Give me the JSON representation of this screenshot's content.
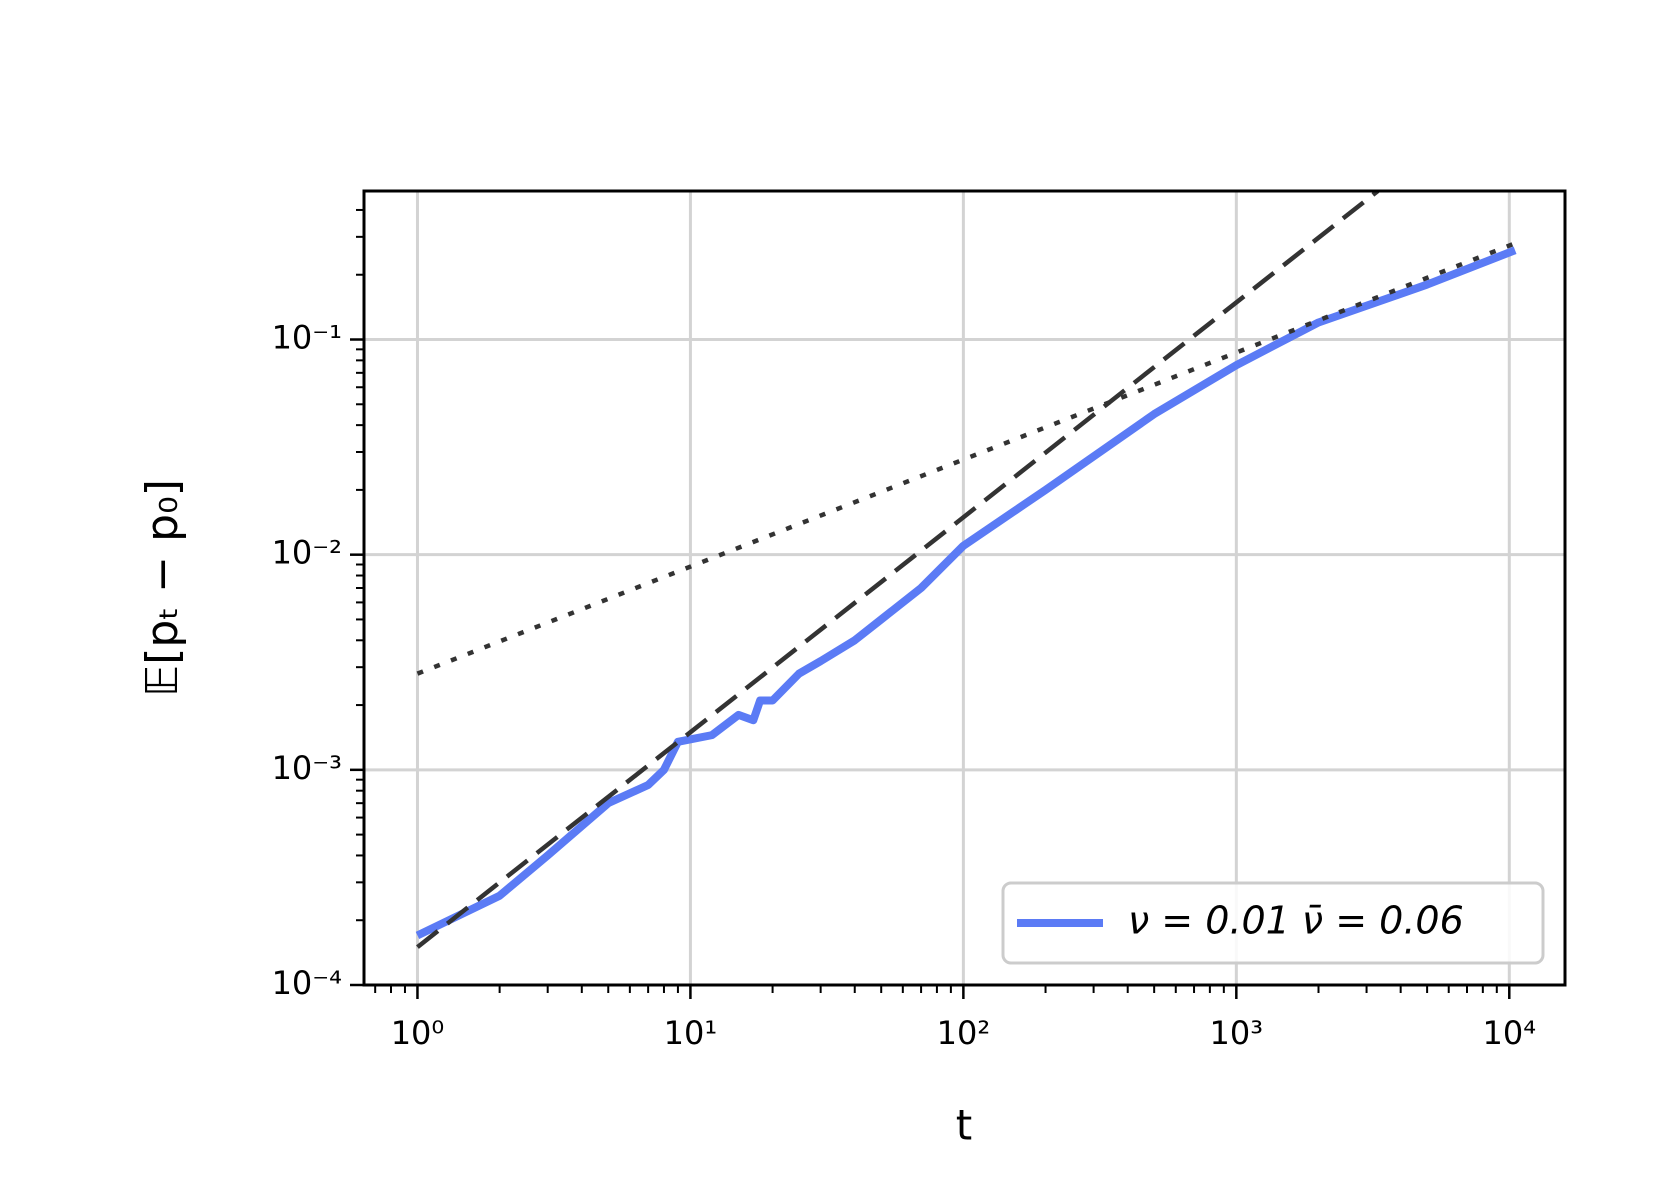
{
  "chart_data": {
    "type": "line",
    "xlabel": "t",
    "ylabel": "𝔼[pₜ − p₀]",
    "log_x": true,
    "log_y": true,
    "grid": true,
    "legend": "lower right",
    "xlim": [
      0.637,
      16000
    ],
    "ylim": [
      0.0001,
      0.49
    ],
    "xticks": [
      {
        "value": 1,
        "label": "10⁰"
      },
      {
        "value": 10,
        "label": "10¹"
      },
      {
        "value": 100,
        "label": "10²"
      },
      {
        "value": 1000,
        "label": "10³"
      },
      {
        "value": 10000,
        "label": "10⁴"
      }
    ],
    "yticks": [
      {
        "value": 0.0001,
        "label": "10⁻⁴"
      },
      {
        "value": 0.001,
        "label": "10⁻³"
      },
      {
        "value": 0.01,
        "label": "10⁻²"
      },
      {
        "value": 0.1,
        "label": "10⁻¹"
      }
    ],
    "series": [
      {
        "name": "ν = 0.01  ν̄ = 0.06",
        "color": "#5b7bf5",
        "style": "solid",
        "x": [
          1,
          2,
          3,
          5,
          7,
          8,
          9,
          12,
          15,
          17,
          18,
          20,
          25,
          30,
          40,
          50,
          70,
          100,
          200,
          500,
          1000,
          2000,
          5000,
          10500
        ],
        "values": [
          0.00017,
          0.00026,
          0.0004,
          0.0007,
          0.00085,
          0.001,
          0.00135,
          0.00145,
          0.0018,
          0.0017,
          0.0021,
          0.0021,
          0.0028,
          0.0032,
          0.004,
          0.005,
          0.007,
          0.011,
          0.02,
          0.045,
          0.076,
          0.12,
          0.18,
          0.26
        ]
      },
      {
        "color": "#333333",
        "style": "dashed",
        "x": [
          1,
          3300
        ],
        "values": [
          0.00015,
          0.49
        ]
      },
      {
        "color": "#333333",
        "style": "dotted",
        "x": [
          1,
          10500
        ],
        "values": [
          0.0028,
          0.28
        ]
      }
    ]
  }
}
